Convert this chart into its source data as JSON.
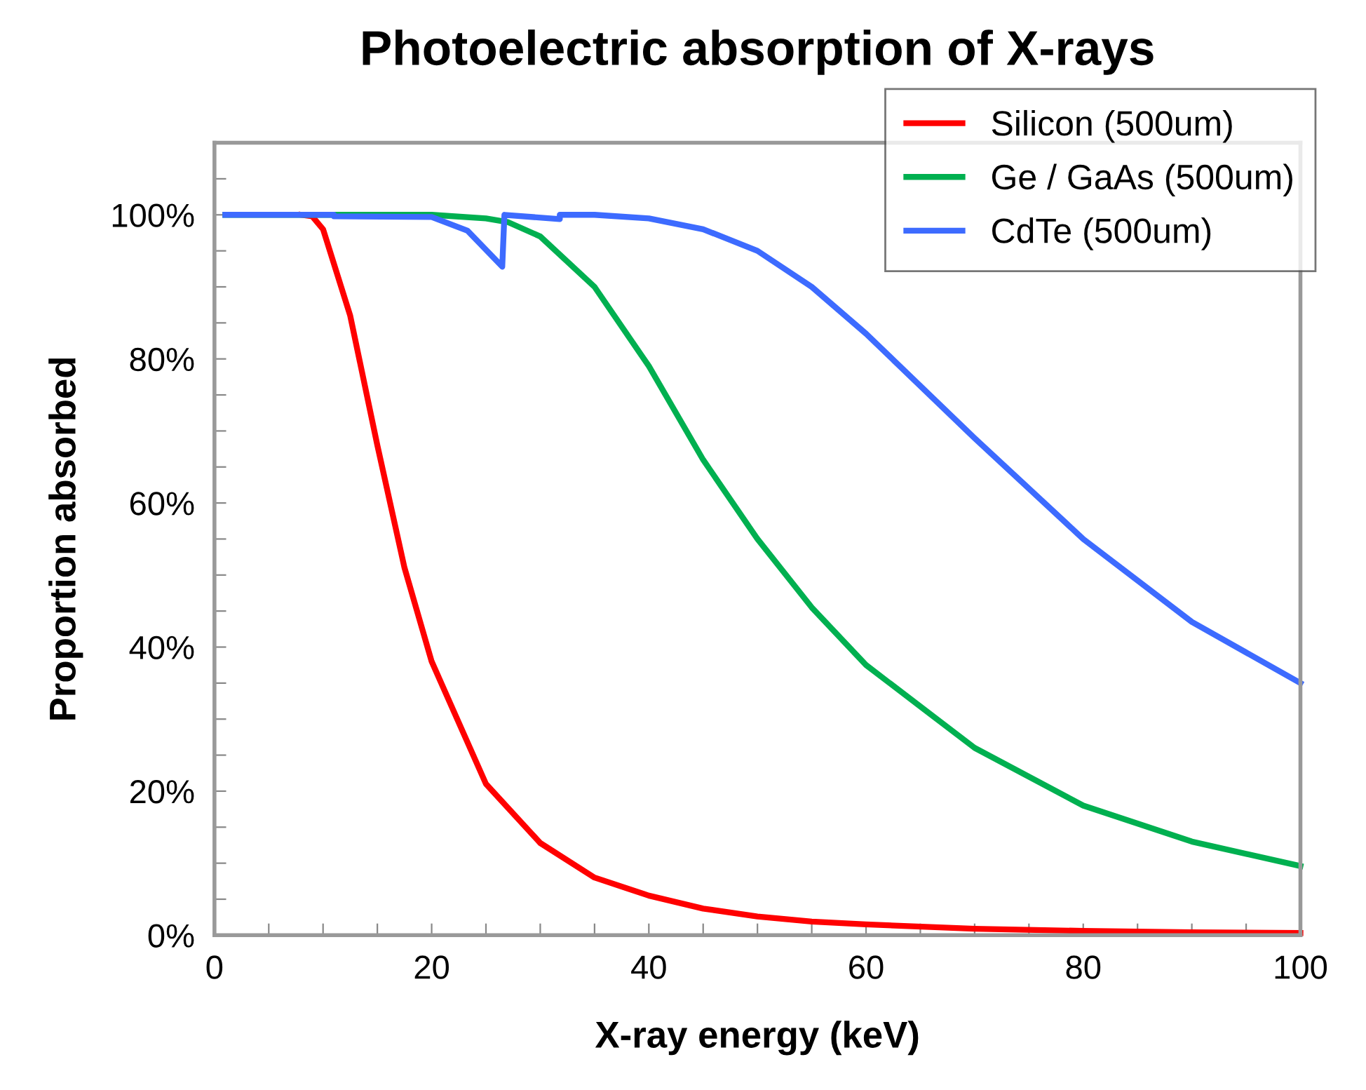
{
  "chart_data": {
    "type": "line",
    "title": "Photoelectric absorption of X-rays",
    "xlabel": "X-ray energy (keV)",
    "ylabel": "Proportion absorbed",
    "xlim": [
      0,
      100
    ],
    "ylim": [
      0,
      110
    ],
    "xticks": [
      0,
      {
        "value": 5,
        "label": null
      },
      {
        "value": 10,
        "label": null
      },
      {
        "value": 15,
        "label": null
      },
      20,
      {
        "value": 25,
        "label": null
      },
      {
        "value": 30,
        "label": null
      },
      {
        "value": 35,
        "label": null
      },
      40,
      {
        "value": 45,
        "label": null
      },
      {
        "value": 50,
        "label": null
      },
      {
        "value": 55,
        "label": null
      },
      60,
      {
        "value": 65,
        "label": null
      },
      {
        "value": 70,
        "label": null
      },
      {
        "value": 75,
        "label": null
      },
      80,
      {
        "value": 85,
        "label": null
      },
      {
        "value": 90,
        "label": null
      },
      {
        "value": 95,
        "label": null
      },
      100
    ],
    "yticks": [
      {
        "value": 0,
        "label": "0%"
      },
      {
        "value": 5,
        "label": null
      },
      {
        "value": 10,
        "label": null
      },
      {
        "value": 15,
        "label": null
      },
      {
        "value": 20,
        "label": "20%"
      },
      {
        "value": 25,
        "label": null
      },
      {
        "value": 30,
        "label": null
      },
      {
        "value": 35,
        "label": null
      },
      {
        "value": 40,
        "label": "40%"
      },
      {
        "value": 45,
        "label": null
      },
      {
        "value": 50,
        "label": null
      },
      {
        "value": 55,
        "label": null
      },
      {
        "value": 60,
        "label": "60%"
      },
      {
        "value": 65,
        "label": null
      },
      {
        "value": 70,
        "label": null
      },
      {
        "value": 75,
        "label": null
      },
      {
        "value": 80,
        "label": "80%"
      },
      {
        "value": 85,
        "label": null
      },
      {
        "value": 90,
        "label": null
      },
      {
        "value": 95,
        "label": null
      },
      {
        "value": 100,
        "label": "100%"
      },
      {
        "value": 105,
        "label": null
      },
      {
        "value": 110,
        "label": null
      }
    ],
    "grid": false,
    "legend": "top right",
    "marker": "none",
    "line_style": "solid",
    "series": [
      {
        "name": "Silicon (500um)",
        "color": "#ff0000",
        "x": [
          8,
          9,
          10,
          12.5,
          15,
          17.5,
          20,
          25,
          30,
          35,
          40,
          45,
          50,
          55,
          60,
          70,
          80,
          90,
          100
        ],
        "values": [
          100,
          99.8,
          98,
          86,
          68,
          51,
          38,
          21,
          12.8,
          8,
          5.5,
          3.7,
          2.6,
          1.9,
          1.5,
          0.9,
          0.6,
          0.4,
          0.3
        ]
      },
      {
        "name": "Ge / GaAs (500um)",
        "color": "#00b050",
        "x": [
          1,
          20,
          25,
          27,
          30,
          35,
          40,
          45,
          50,
          55,
          60,
          70,
          80,
          90,
          100
        ],
        "values": [
          100,
          100,
          99.5,
          99,
          97,
          90,
          79,
          66,
          55,
          45.5,
          37.5,
          26,
          18,
          13,
          9.6
        ]
      },
      {
        "name": "CdTe (500um)",
        "color": "#3d6bff",
        "x": [
          1,
          11,
          11,
          20,
          23.3,
          26.5,
          26.7,
          31.8,
          31.8,
          35,
          40,
          45,
          50,
          55,
          60,
          70,
          80,
          90,
          100
        ],
        "values": [
          100,
          100,
          99.8,
          99.7,
          97.8,
          92.8,
          100,
          99.4,
          100,
          100,
          99.5,
          98,
          95,
          90,
          83.5,
          69,
          55,
          43.5,
          35
        ]
      }
    ]
  }
}
